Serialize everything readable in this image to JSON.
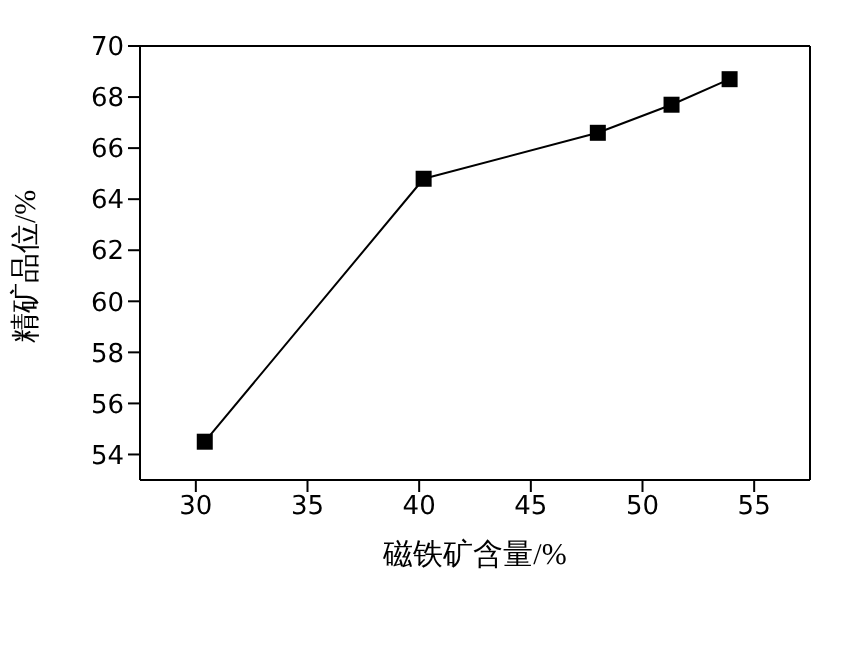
{
  "chart_data": {
    "type": "line",
    "xlabel": "磁铁矿含量/%",
    "ylabel": "精矿品位/%",
    "x": [
      30.4,
      40.2,
      48.0,
      51.3,
      53.9
    ],
    "series": [
      {
        "color": "#000000",
        "values": [
          54.5,
          64.8,
          66.6,
          67.7,
          68.7
        ]
      }
    ],
    "xlim": [
      27.5,
      57.5
    ],
    "xticks": [
      30,
      35,
      40,
      45,
      50,
      55
    ],
    "ylim": [
      53,
      70
    ],
    "yticks": [
      54,
      56,
      58,
      60,
      62,
      64,
      66,
      68,
      70
    ],
    "marker": "square",
    "line_style": "solid",
    "grid": false,
    "legend": false
  }
}
